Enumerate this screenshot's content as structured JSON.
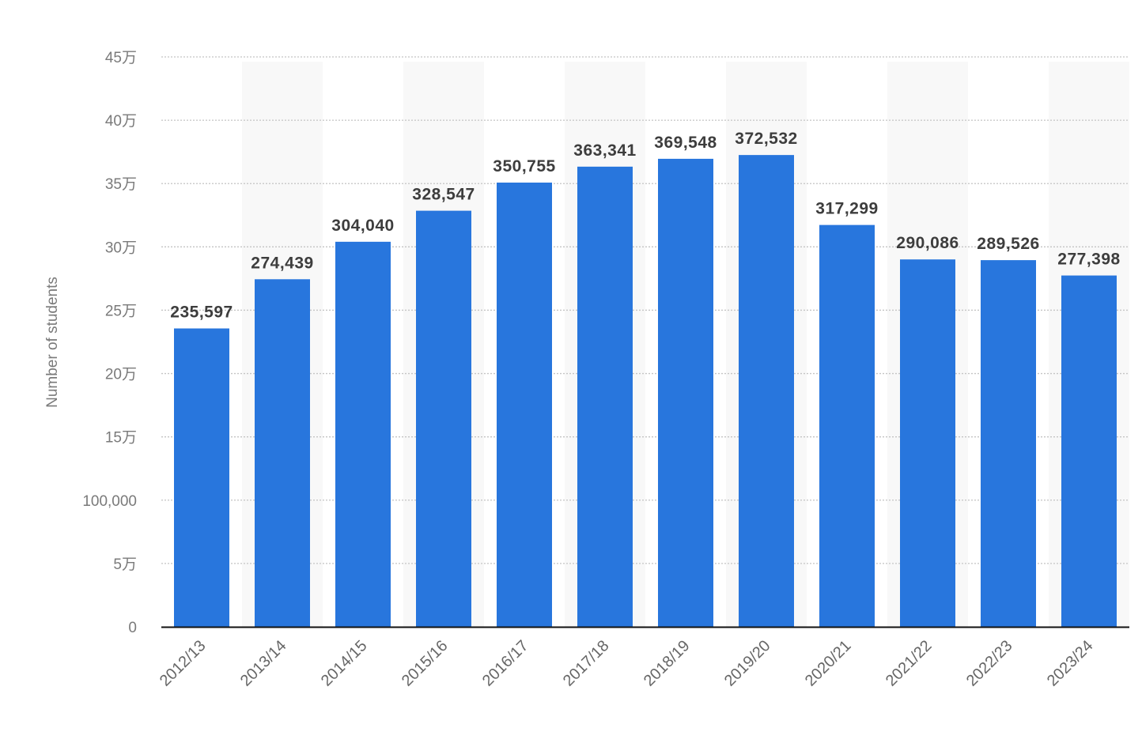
{
  "chart_data": {
    "type": "bar",
    "title": "",
    "xlabel": "",
    "ylabel": "Number of students",
    "ylim": [
      0,
      450000
    ],
    "yticks": [
      {
        "value": 0,
        "label": "0"
      },
      {
        "value": 50000,
        "label": "5万"
      },
      {
        "value": 100000,
        "label": "100,000"
      },
      {
        "value": 150000,
        "label": "15万"
      },
      {
        "value": 200000,
        "label": "20万"
      },
      {
        "value": 250000,
        "label": "25万"
      },
      {
        "value": 300000,
        "label": "30万"
      },
      {
        "value": 350000,
        "label": "35万"
      },
      {
        "value": 400000,
        "label": "40万"
      },
      {
        "value": 450000,
        "label": "45万"
      }
    ],
    "categories": [
      "2012/13",
      "2013/14",
      "2014/15",
      "2015/16",
      "2016/17",
      "2017/18",
      "2018/19",
      "2019/20",
      "2020/21",
      "2021/22",
      "2022/23",
      "2023/24"
    ],
    "values": [
      235597,
      274439,
      304040,
      328547,
      350755,
      363341,
      369548,
      372532,
      317299,
      290086,
      289526,
      277398
    ],
    "data_labels": [
      "235,597",
      "274,439",
      "304,040",
      "328,547",
      "350,755",
      "363,341",
      "369,548",
      "372,532",
      "317,299",
      "290,086",
      "289,526",
      "277,398"
    ],
    "grid": true,
    "legend": "none",
    "bar_color": "#2876dd"
  }
}
